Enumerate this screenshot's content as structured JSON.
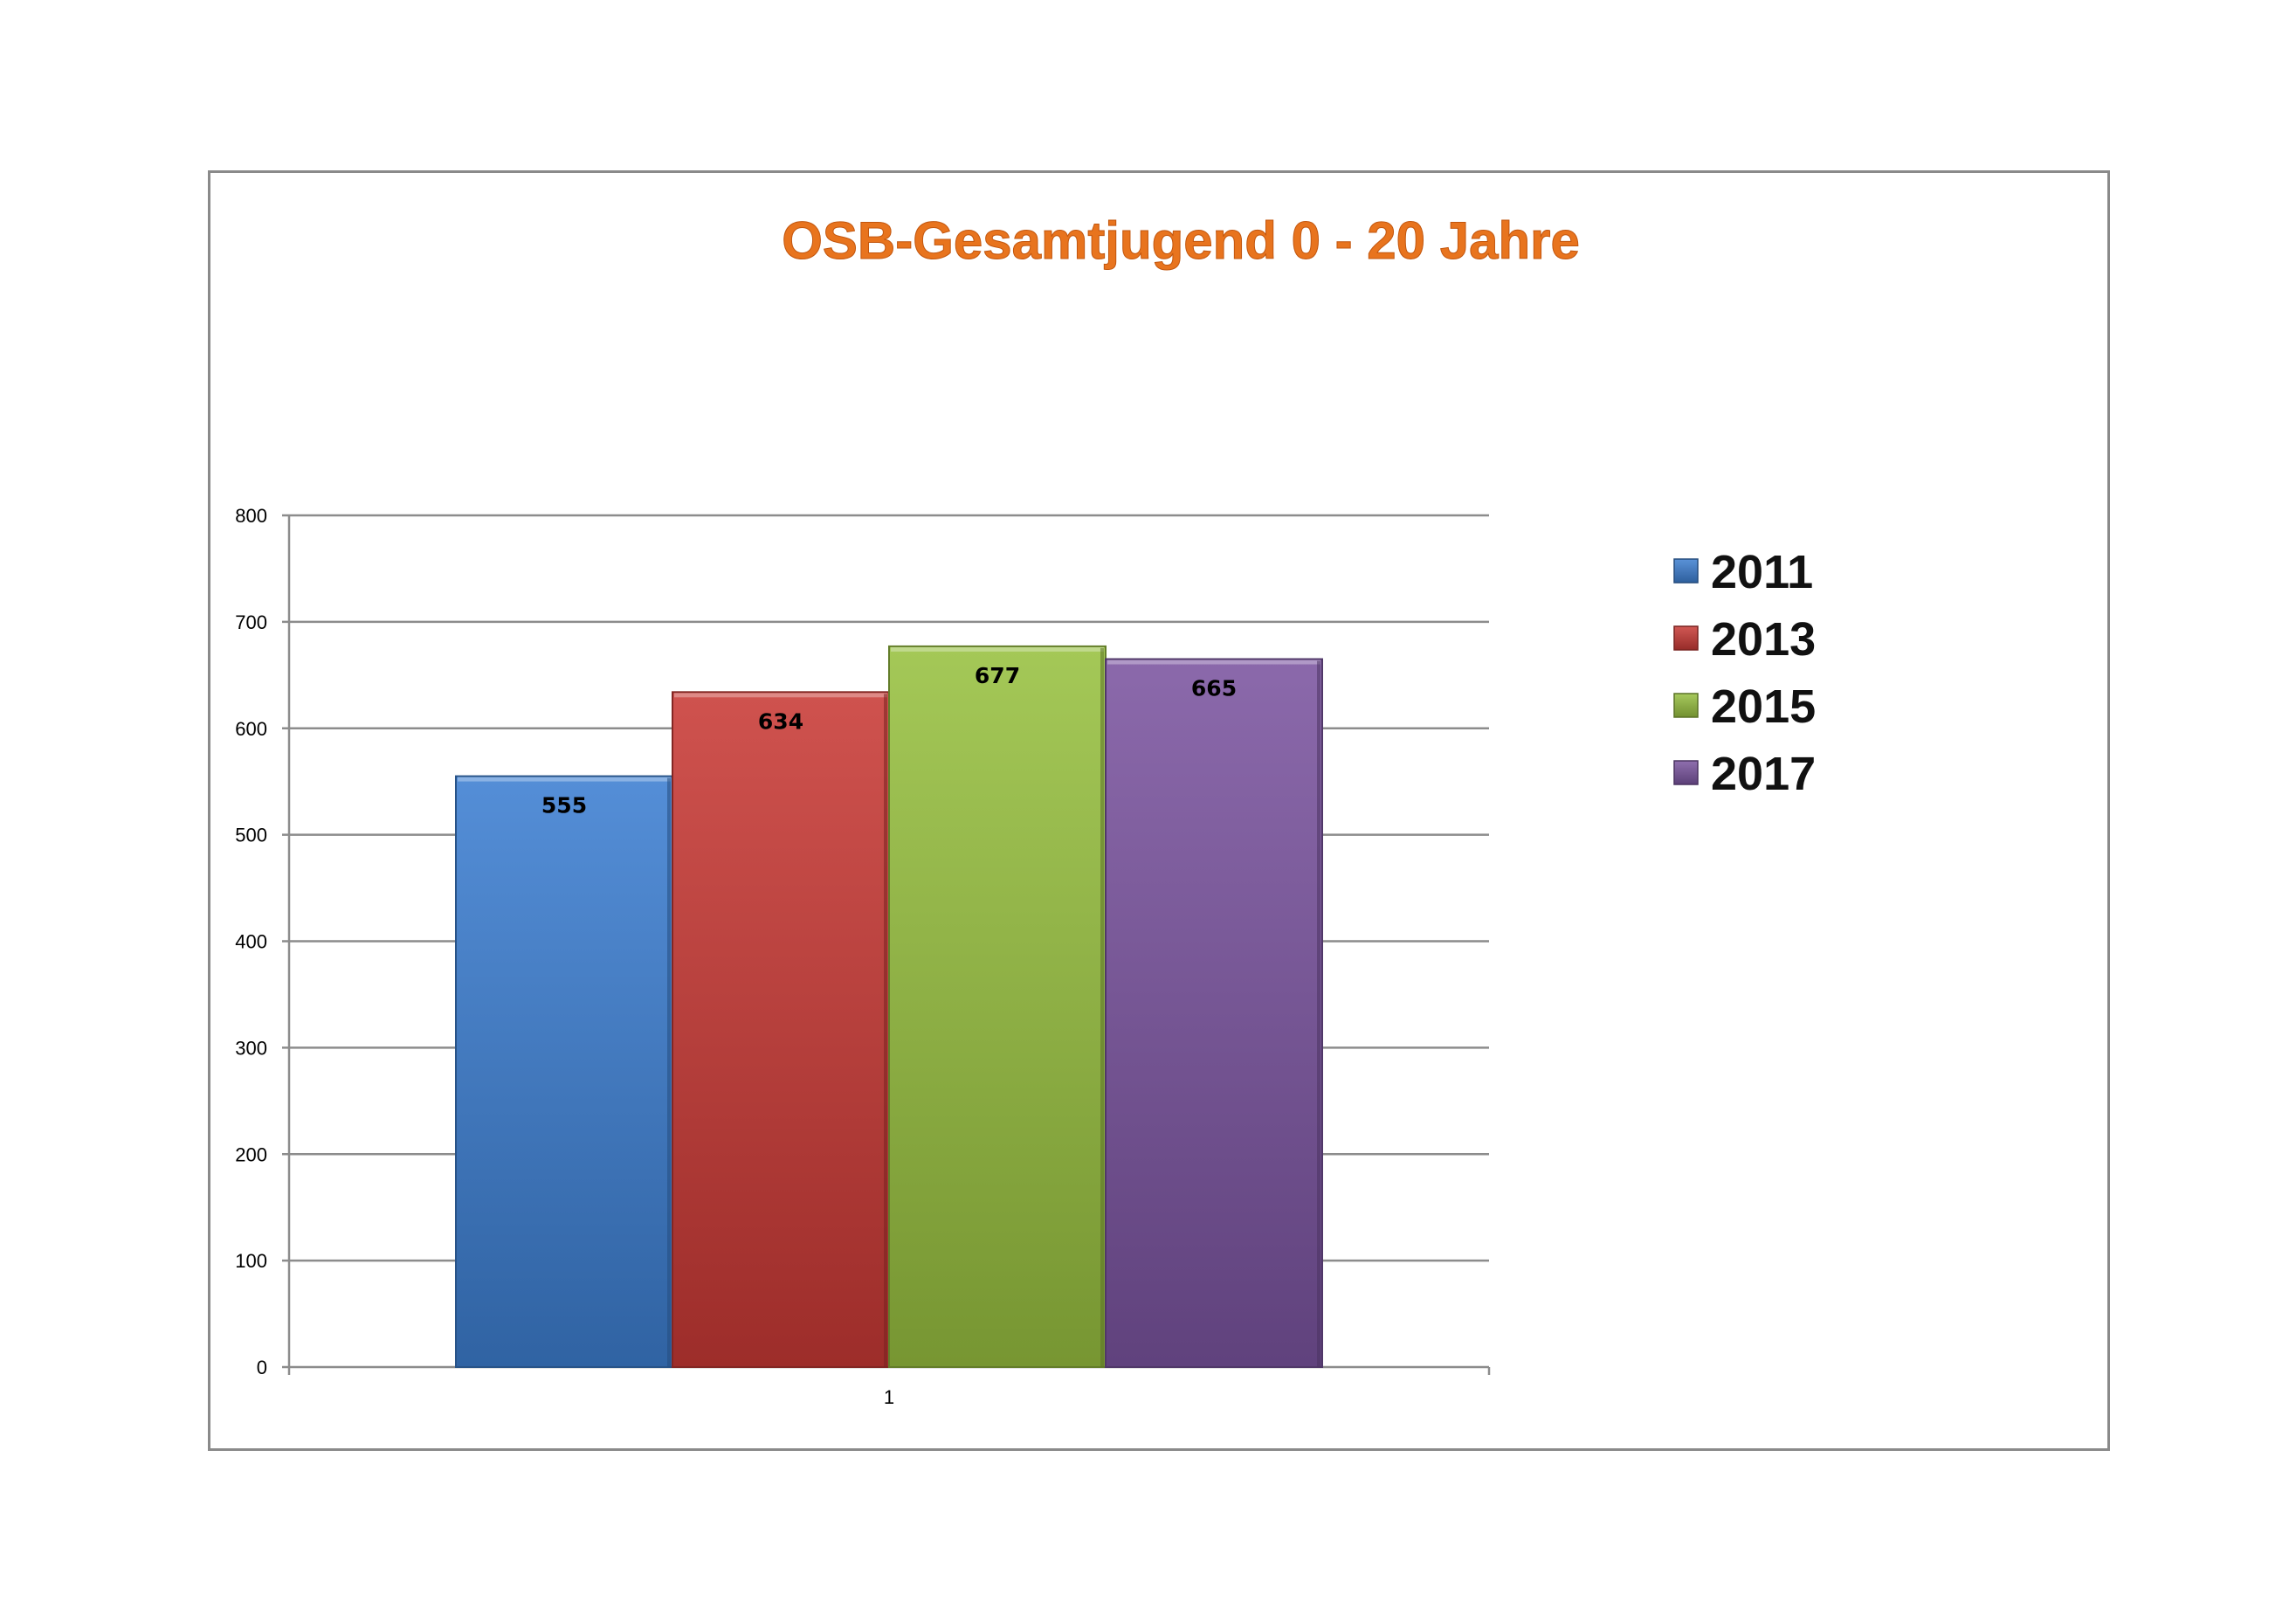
{
  "chart_data": {
    "type": "bar",
    "title": "OSB-Gesamtjugend 0 - 20 Jahre",
    "xlabel": "",
    "ylabel": "",
    "categories": [
      "1"
    ],
    "ylim": [
      0,
      800
    ],
    "yticks": [
      0,
      100,
      200,
      300,
      400,
      500,
      600,
      700,
      800
    ],
    "grid": true,
    "legend_position": "right",
    "series": [
      {
        "name": "2011",
        "values": [
          555
        ],
        "color": "#3d7fd1"
      },
      {
        "name": "2013",
        "values": [
          634
        ],
        "color": "#c93a36"
      },
      {
        "name": "2015",
        "values": [
          677
        ],
        "color": "#98c040"
      },
      {
        "name": "2017",
        "values": [
          665
        ],
        "color": "#7b55a0"
      }
    ]
  }
}
